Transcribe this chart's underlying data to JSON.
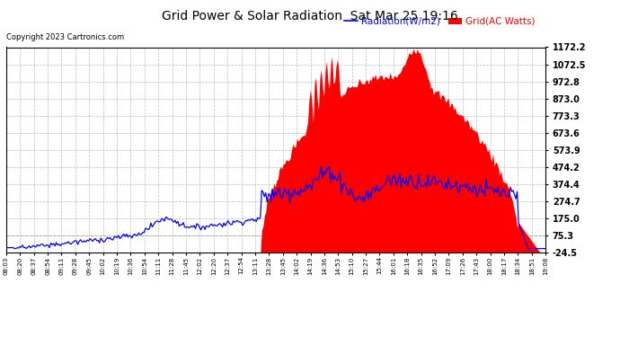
{
  "title": "Grid Power & Solar Radiation  Sat Mar 25 19:16",
  "copyright": "Copyright 2023 Cartronics.com",
  "legend_radiation": "Radiation(W/m2)",
  "legend_grid": "Grid(AC Watts)",
  "radiation_color": "blue",
  "grid_color": "red",
  "background_color": "#ffffff",
  "ylim": [
    -24.5,
    1172.2
  ],
  "yticks": [
    1172.2,
    1072.5,
    972.8,
    873.0,
    773.3,
    673.6,
    573.9,
    474.2,
    374.4,
    274.7,
    175.0,
    75.3,
    -24.5
  ],
  "dashed_line_y": 75.3,
  "xtick_labels": [
    "08:03",
    "08:20",
    "08:37",
    "08:54",
    "09:11",
    "09:28",
    "09:45",
    "10:02",
    "10:19",
    "10:36",
    "10:54",
    "11:11",
    "11:28",
    "11:45",
    "12:02",
    "12:20",
    "12:37",
    "12:54",
    "13:11",
    "13:28",
    "13:45",
    "14:02",
    "14:19",
    "14:36",
    "14:53",
    "15:10",
    "15:27",
    "15:44",
    "16:01",
    "16:18",
    "16:35",
    "16:52",
    "17:09",
    "17:26",
    "17:43",
    "18:00",
    "18:17",
    "18:34",
    "18:51",
    "19:08"
  ],
  "num_points": 400
}
